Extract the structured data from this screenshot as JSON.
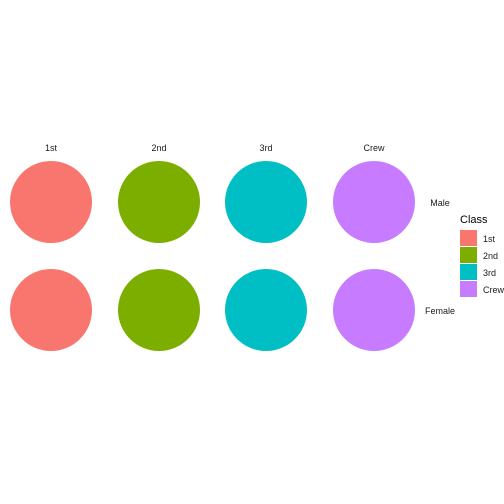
{
  "chart_data": {
    "type": "pie",
    "facet_columns": [
      "1st",
      "2nd",
      "3rd",
      "Crew"
    ],
    "facet_rows": [
      "Male",
      "Female"
    ],
    "legend": {
      "title": "Class",
      "placement": "right",
      "entries": [
        {
          "label": "1st",
          "color": "#F8766D"
        },
        {
          "label": "2nd",
          "color": "#7CAE00"
        },
        {
          "label": "3rd",
          "color": "#00BFC4"
        },
        {
          "label": "Crew",
          "color": "#C77CFF"
        }
      ]
    },
    "panels": [
      {
        "column": "1st",
        "row": "Male",
        "fill": "1st"
      },
      {
        "column": "2nd",
        "row": "Male",
        "fill": "2nd"
      },
      {
        "column": "3rd",
        "row": "Male",
        "fill": "3rd"
      },
      {
        "column": "Crew",
        "row": "Male",
        "fill": "Crew"
      },
      {
        "column": "1st",
        "row": "Female",
        "fill": "1st"
      },
      {
        "column": "2nd",
        "row": "Female",
        "fill": "2nd"
      },
      {
        "column": "3rd",
        "row": "Female",
        "fill": "3rd"
      },
      {
        "column": "Crew",
        "row": "Female",
        "fill": "Crew"
      }
    ],
    "grid": false
  }
}
